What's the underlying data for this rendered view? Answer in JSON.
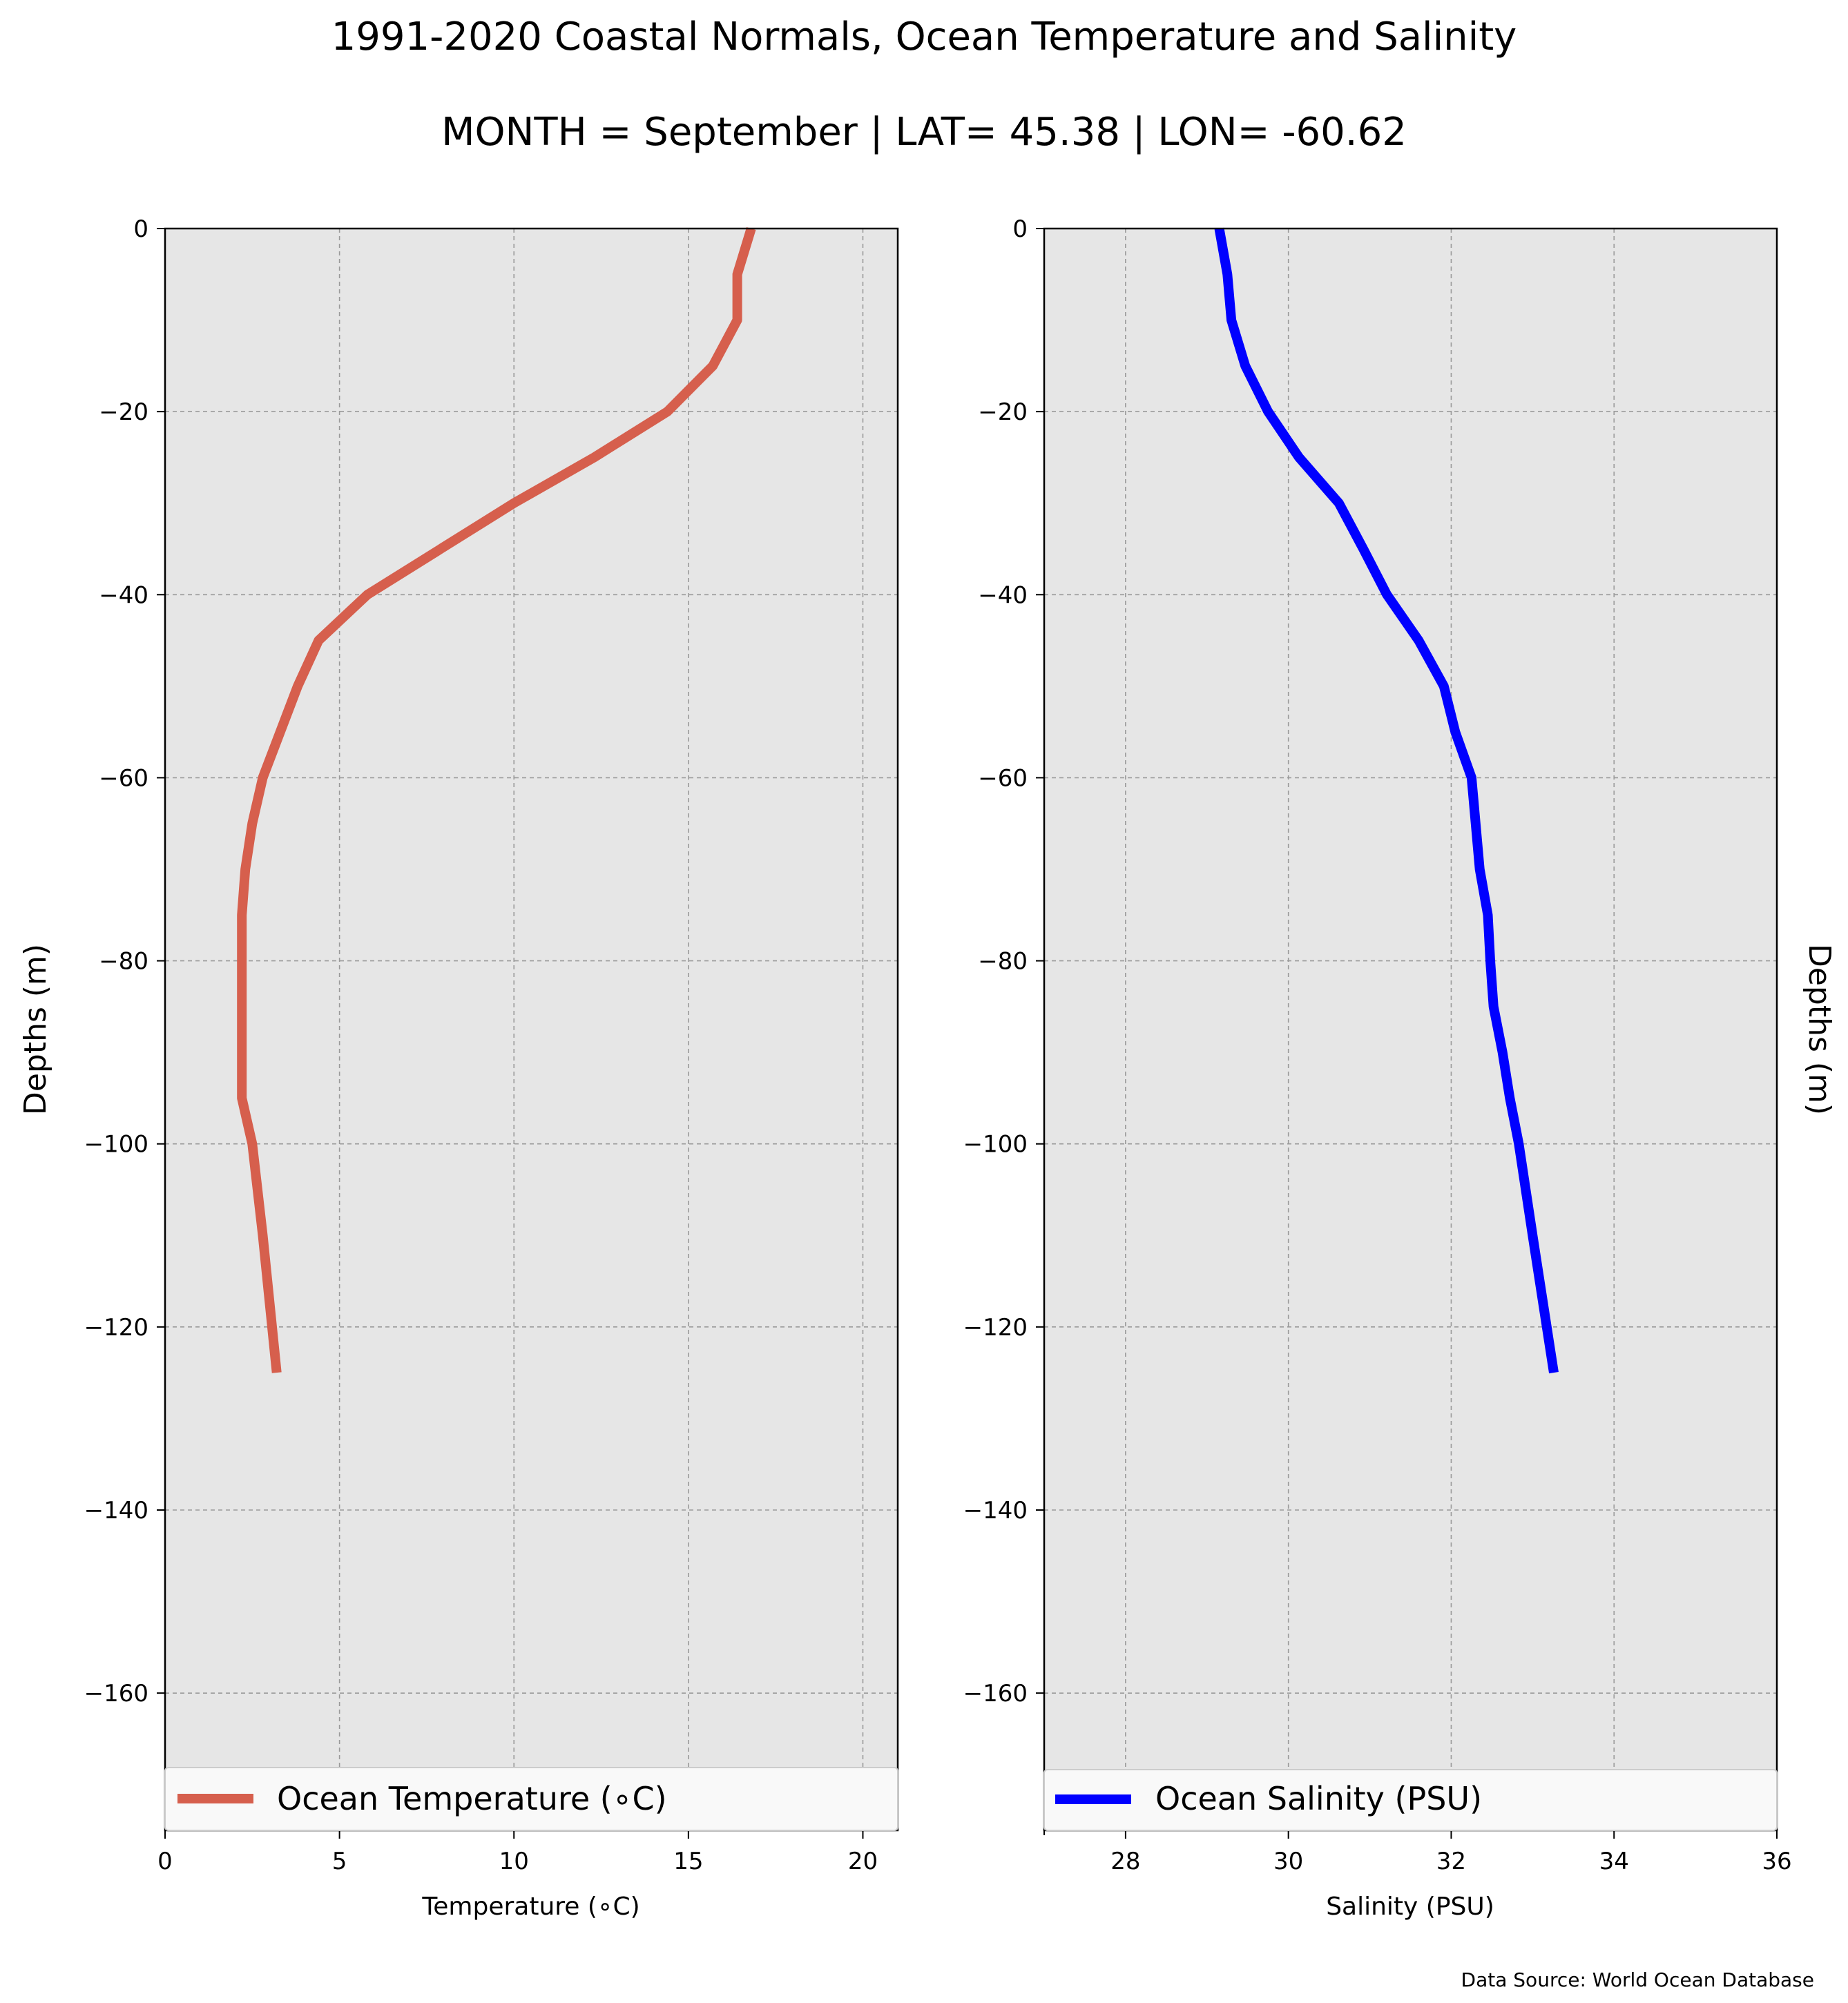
{
  "title": "1991-2020 Coastal Normals, Ocean Temperature and Salinity",
  "subtitle": "MONTH = September | LAT= 45.38 | LON= -60.62",
  "source": "Data Source: World Ocean Database",
  "chart_data": [
    {
      "type": "line",
      "xlabel": "Temperature (∘C)",
      "ylabel": "Depths (m)",
      "xlim": [
        0,
        21
      ],
      "ylim": [
        -175,
        0
      ],
      "xticks": [
        0,
        5,
        10,
        15,
        20
      ],
      "xtick_labels": [
        "0",
        "5",
        "10",
        "15",
        "20"
      ],
      "yticks": [
        0,
        -20,
        -40,
        -60,
        -80,
        -100,
        -120,
        -140,
        -160
      ],
      "ytick_labels": [
        "0",
        "−20",
        "−40",
        "−60",
        "−80",
        "−100",
        "−120",
        "−140",
        "−160"
      ],
      "grid": true,
      "legend_position": "lower center",
      "series": [
        {
          "name": "Ocean Temperature (∘C)",
          "color": "#d65f4d",
          "x": [
            16.8,
            16.4,
            16.4,
            15.7,
            14.4,
            12.3,
            10.0,
            7.9,
            5.8,
            4.4,
            3.8,
            2.8,
            2.5,
            2.3,
            2.2,
            2.2,
            2.2,
            2.2,
            2.2,
            2.5,
            2.8,
            3.2
          ],
          "y": [
            0,
            -5,
            -10,
            -15,
            -20,
            -25,
            -30,
            -35,
            -40,
            -45,
            -50,
            -60,
            -65,
            -70,
            -75,
            -80,
            -85,
            -90,
            -95,
            -100,
            -110,
            -125
          ]
        }
      ]
    },
    {
      "type": "line",
      "xlabel": "Salinity (PSU)",
      "ylabel": "Depths (m)",
      "xlim": [
        27,
        36
      ],
      "ylim": [
        -175,
        0
      ],
      "xticks": [
        28,
        30,
        32,
        34,
        36
      ],
      "xtick_labels": [
        "28",
        "30",
        "32",
        "34",
        "36"
      ],
      "yticks": [
        0,
        -20,
        -40,
        -60,
        -80,
        -100,
        -120,
        -140,
        -160
      ],
      "ytick_labels": [
        "0",
        "−20",
        "−40",
        "−60",
        "−80",
        "−100",
        "−120",
        "−140",
        "−160"
      ],
      "grid": true,
      "legend_position": "lower center",
      "series": [
        {
          "name": "Ocean Salinity (PSU)",
          "color": "#0000ff",
          "x": [
            29.15,
            29.25,
            29.3,
            29.47,
            29.75,
            30.13,
            30.62,
            30.92,
            31.21,
            31.6,
            31.91,
            32.05,
            32.25,
            32.35,
            32.45,
            32.48,
            32.52,
            32.63,
            32.72,
            32.83,
            33.0,
            33.26
          ],
          "y": [
            0,
            -5,
            -10,
            -15,
            -20,
            -25,
            -30,
            -35,
            -40,
            -45,
            -50,
            -55,
            -60,
            -70,
            -75,
            -80,
            -85,
            -90,
            -95,
            -100,
            -110,
            -125
          ]
        }
      ]
    }
  ],
  "styles": {
    "plot_background": "#e6e6e6",
    "grid_color": "#9a9a9a",
    "legend_background": "#f9f9f9",
    "legend_border": "#cccccc"
  }
}
